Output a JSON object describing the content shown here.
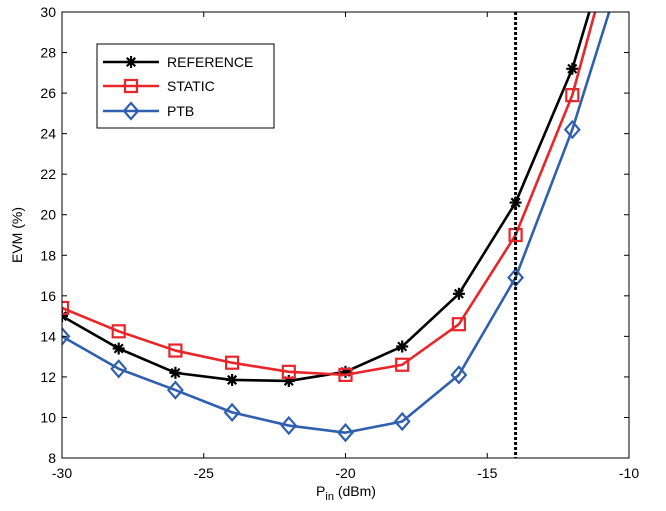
{
  "chart_data": {
    "type": "line",
    "title": "",
    "xlabel": "P",
    "xlabel_sub": "in",
    "xlabel_unit": " (dBm)",
    "ylabel": "EVM (%)",
    "xlim": [
      -30,
      -10
    ],
    "ylim": [
      8,
      30
    ],
    "x_ticks": [
      -30,
      -25,
      -20,
      -15,
      -10
    ],
    "y_ticks": [
      8,
      10,
      12,
      14,
      16,
      18,
      20,
      22,
      24,
      26,
      28,
      30
    ],
    "grid": false,
    "legend_position": "top-left",
    "reference_line": {
      "x": -14,
      "style": "dotted",
      "color": "#000000"
    },
    "series": [
      {
        "name": "REFERENCE",
        "color": "#000000",
        "marker": "asterisk-icon",
        "x": [
          -30,
          -28,
          -26,
          -24,
          -22,
          -20,
          -18,
          -16,
          -14,
          -12,
          -11.4
        ],
        "y": [
          15.0,
          13.4,
          12.2,
          11.85,
          11.8,
          12.25,
          13.5,
          16.1,
          20.6,
          27.2,
          30.0
        ],
        "marker_count": 10
      },
      {
        "name": "STATIC",
        "color": "#e8262a",
        "marker": "square-icon",
        "x": [
          -30,
          -28,
          -26,
          -24,
          -22,
          -20,
          -18,
          -16,
          -14,
          -12,
          -11.2
        ],
        "y": [
          15.4,
          14.25,
          13.3,
          12.7,
          12.25,
          12.1,
          12.6,
          14.6,
          19.0,
          25.9,
          30.0
        ],
        "marker_count": 10
      },
      {
        "name": "PTB",
        "color": "#2f5fae",
        "marker": "diamond-icon",
        "x": [
          -30,
          -28,
          -26,
          -24,
          -22,
          -20,
          -18,
          -16,
          -14,
          -12,
          -10.7
        ],
        "y": [
          14.0,
          12.4,
          11.35,
          10.25,
          9.6,
          9.25,
          9.8,
          12.1,
          16.9,
          24.2,
          30.0
        ],
        "marker_count": 10
      }
    ]
  }
}
